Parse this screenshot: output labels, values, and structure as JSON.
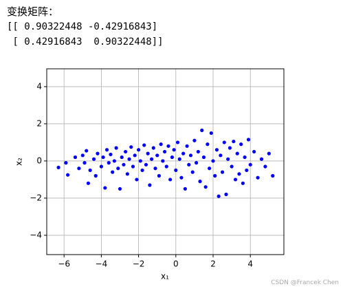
{
  "output": {
    "label": "变换矩阵：",
    "matrix_lines": [
      "[[ 0.90322448 -0.42916843]",
      " [ 0.42916843  0.90322448]]"
    ]
  },
  "watermark": "CSDN @Francek Chen",
  "chart_data": {
    "type": "scatter",
    "xlabel": "x₁",
    "ylabel": "x₂",
    "color": "#0000ff",
    "grid": true,
    "xlim": [
      -6.93,
      5.8
    ],
    "ylim": [
      -5.04,
      4.96
    ],
    "xticks": [
      {
        "value": -6,
        "label": "−6"
      },
      {
        "value": -4,
        "label": "−4"
      },
      {
        "value": -2,
        "label": "−2"
      },
      0,
      2,
      4
    ],
    "yticks": [
      {
        "value": -4,
        "label": "−4"
      },
      {
        "value": -2,
        "label": "−2"
      },
      0,
      2,
      4
    ],
    "x": [
      -6.3,
      -5.9,
      -5.8,
      -5.4,
      -5.2,
      -5.0,
      -4.9,
      -4.8,
      -4.7,
      -4.6,
      -4.4,
      -4.3,
      -4.2,
      -4.0,
      -3.9,
      -3.8,
      -3.7,
      -3.6,
      -3.5,
      -3.4,
      -3.3,
      -3.2,
      -3.1,
      -3.0,
      -2.9,
      -2.8,
      -2.7,
      -2.6,
      -2.5,
      -2.4,
      -2.3,
      -2.2,
      -2.1,
      -2.0,
      -1.9,
      -1.8,
      -1.7,
      -1.6,
      -1.5,
      -1.4,
      -1.3,
      -1.2,
      -1.1,
      -1.0,
      -0.9,
      -0.8,
      -0.7,
      -0.6,
      -0.5,
      -0.4,
      -0.3,
      -0.2,
      -0.1,
      0.0,
      0.1,
      0.2,
      0.3,
      0.4,
      0.5,
      0.6,
      0.7,
      0.8,
      0.9,
      1.0,
      1.1,
      1.2,
      1.3,
      1.4,
      1.5,
      1.6,
      1.7,
      1.8,
      1.9,
      2.0,
      2.1,
      2.2,
      2.3,
      2.4,
      2.5,
      2.6,
      2.7,
      2.8,
      2.9,
      3.0,
      3.1,
      3.2,
      3.3,
      3.4,
      3.5,
      3.6,
      3.7,
      3.8,
      3.9,
      4.0,
      4.2,
      4.4,
      4.6,
      4.8,
      5.0,
      5.2
    ],
    "values": [
      -0.35,
      -0.1,
      -0.75,
      0.2,
      -0.4,
      0.3,
      -0.1,
      0.55,
      -1.2,
      -0.5,
      0.1,
      -0.8,
      0.4,
      -0.3,
      0.2,
      -1.45,
      0.6,
      -0.1,
      0.35,
      -0.6,
      0.0,
      0.7,
      -0.4,
      -1.5,
      0.2,
      -0.2,
      0.5,
      -0.7,
      0.1,
      0.75,
      -0.3,
      0.3,
      -1.0,
      0.6,
      0.0,
      -0.5,
      0.85,
      -0.2,
      0.4,
      -1.3,
      0.1,
      0.7,
      -0.4,
      0.3,
      -0.8,
      0.9,
      0.0,
      0.5,
      -0.3,
      0.8,
      -1.0,
      0.2,
      0.6,
      -0.5,
      1.0,
      0.1,
      -0.9,
      0.4,
      -1.5,
      0.8,
      -0.2,
      0.3,
      -0.6,
      1.1,
      -0.1,
      0.5,
      -1.1,
      1.65,
      0.2,
      -1.4,
      0.9,
      -0.4,
      1.5,
      0.0,
      -0.8,
      0.6,
      -1.9,
      0.3,
      -0.6,
      1.0,
      -1.8,
      0.1,
      0.7,
      -0.3,
      1.05,
      -1.0,
      0.4,
      -0.7,
      0.9,
      -1.2,
      0.2,
      -0.5,
      1.15,
      -0.2,
      0.5,
      -0.9,
      0.1,
      -0.3,
      0.4,
      -0.8
    ]
  }
}
